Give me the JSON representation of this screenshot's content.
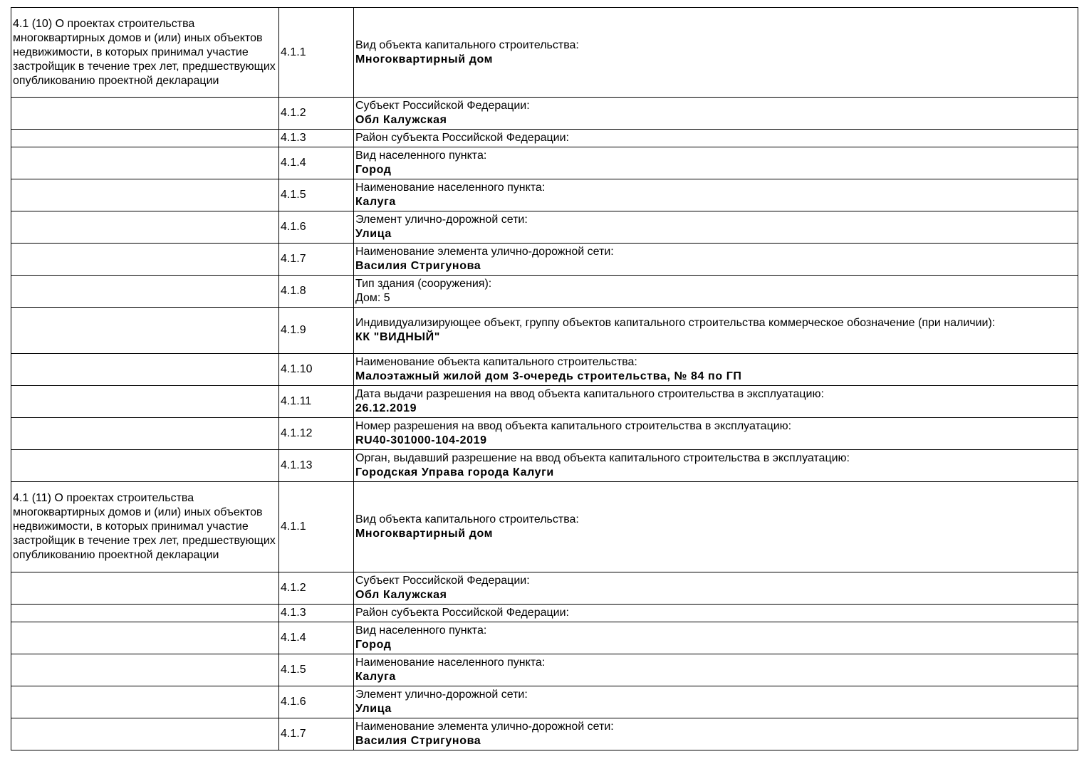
{
  "rows": [
    {
      "section": "4.1 (10) О проектах строительства многоквартирных домов и (или) иных объектов недвижимости, в которых принимал участие застройщик в течение трех лет, предшествующих опубликованию проектной декларации",
      "code": "4.1.1",
      "label": "Вид объекта капитального строительства:",
      "value": "Многоквартирный дом",
      "value_bold": true
    },
    {
      "section": "",
      "code": "4.1.2",
      "label": "Субъект Российской Федерации:",
      "value": "Обл Калужская",
      "value_bold": true
    },
    {
      "section": "",
      "code": "4.1.3",
      "label": "Район субъекта Российской Федерации:",
      "value": "",
      "value_bold": true
    },
    {
      "section": "",
      "code": "4.1.4",
      "label": "Вид населенного пункта:",
      "value": "Город",
      "value_bold": true
    },
    {
      "section": "",
      "code": "4.1.5",
      "label": "Наименование населенного пункта:",
      "value": "Калуга",
      "value_bold": true
    },
    {
      "section": "",
      "code": "4.1.6",
      "label": "Элемент улично-дорожной сети:",
      "value": "Улица",
      "value_bold": true
    },
    {
      "section": "",
      "code": "4.1.7",
      "label": "Наименование элемента улично-дорожной сети:",
      "value": "Василия Стригунова",
      "value_bold": true
    },
    {
      "section": "",
      "code": "4.1.8",
      "label": "Тип здания (сооружения):",
      "value": "Дом: 5",
      "value_bold": false
    },
    {
      "section": "",
      "code": "4.1.9",
      "label": "Индивидуализирующее объект, группу объектов капитального строительства коммерческое обозначение (при наличии):",
      "value": "КК \"ВИДНЫЙ\"",
      "value_bold": true
    },
    {
      "section": "",
      "code": "4.1.10",
      "label": "Наименование объекта капитального строительства:",
      "value": "Малоэтажный жилой дом 3-очередь строительства, № 84 по ГП",
      "value_bold": true
    },
    {
      "section": "",
      "code": "4.1.11",
      "label": "Дата выдачи разрешения на ввод объекта капитального строительства в эксплуатацию:",
      "value": "26.12.2019",
      "value_bold": true
    },
    {
      "section": "",
      "code": "4.1.12",
      "label": "Номер разрешения на ввод объекта капитального строительства в эксплуатацию:",
      "value": "RU40-301000-104-2019",
      "value_bold": true
    },
    {
      "section": "",
      "code": "4.1.13",
      "label": "Орган, выдавший разрешение на ввод объекта капитального строительства в эксплуатацию:",
      "value": "Городская Управа города Калуги",
      "value_bold": true
    },
    {
      "section": "4.1 (11) О проектах строительства многоквартирных домов и (или) иных объектов недвижимости, в которых принимал участие застройщик в течение трех лет, предшествующих опубликованию проектной декларации",
      "code": "4.1.1",
      "label": "Вид объекта капитального строительства:",
      "value": "Многоквартирный дом",
      "value_bold": true
    },
    {
      "section": "",
      "code": "4.1.2",
      "label": "Субъект Российской Федерации:",
      "value": "Обл Калужская",
      "value_bold": true
    },
    {
      "section": "",
      "code": "4.1.3",
      "label": "Район субъекта Российской Федерации:",
      "value": "",
      "value_bold": true
    },
    {
      "section": "",
      "code": "4.1.4",
      "label": "Вид населенного пункта:",
      "value": "Город",
      "value_bold": true
    },
    {
      "section": "",
      "code": "4.1.5",
      "label": "Наименование населенного пункта:",
      "value": "Калуга",
      "value_bold": true
    },
    {
      "section": "",
      "code": "4.1.6",
      "label": "Элемент улично-дорожной сети:",
      "value": "Улица",
      "value_bold": true
    },
    {
      "section": "",
      "code": "4.1.7",
      "label": "Наименование элемента улично-дорожной сети:",
      "value": "Василия Стригунова",
      "value_bold": true
    }
  ]
}
